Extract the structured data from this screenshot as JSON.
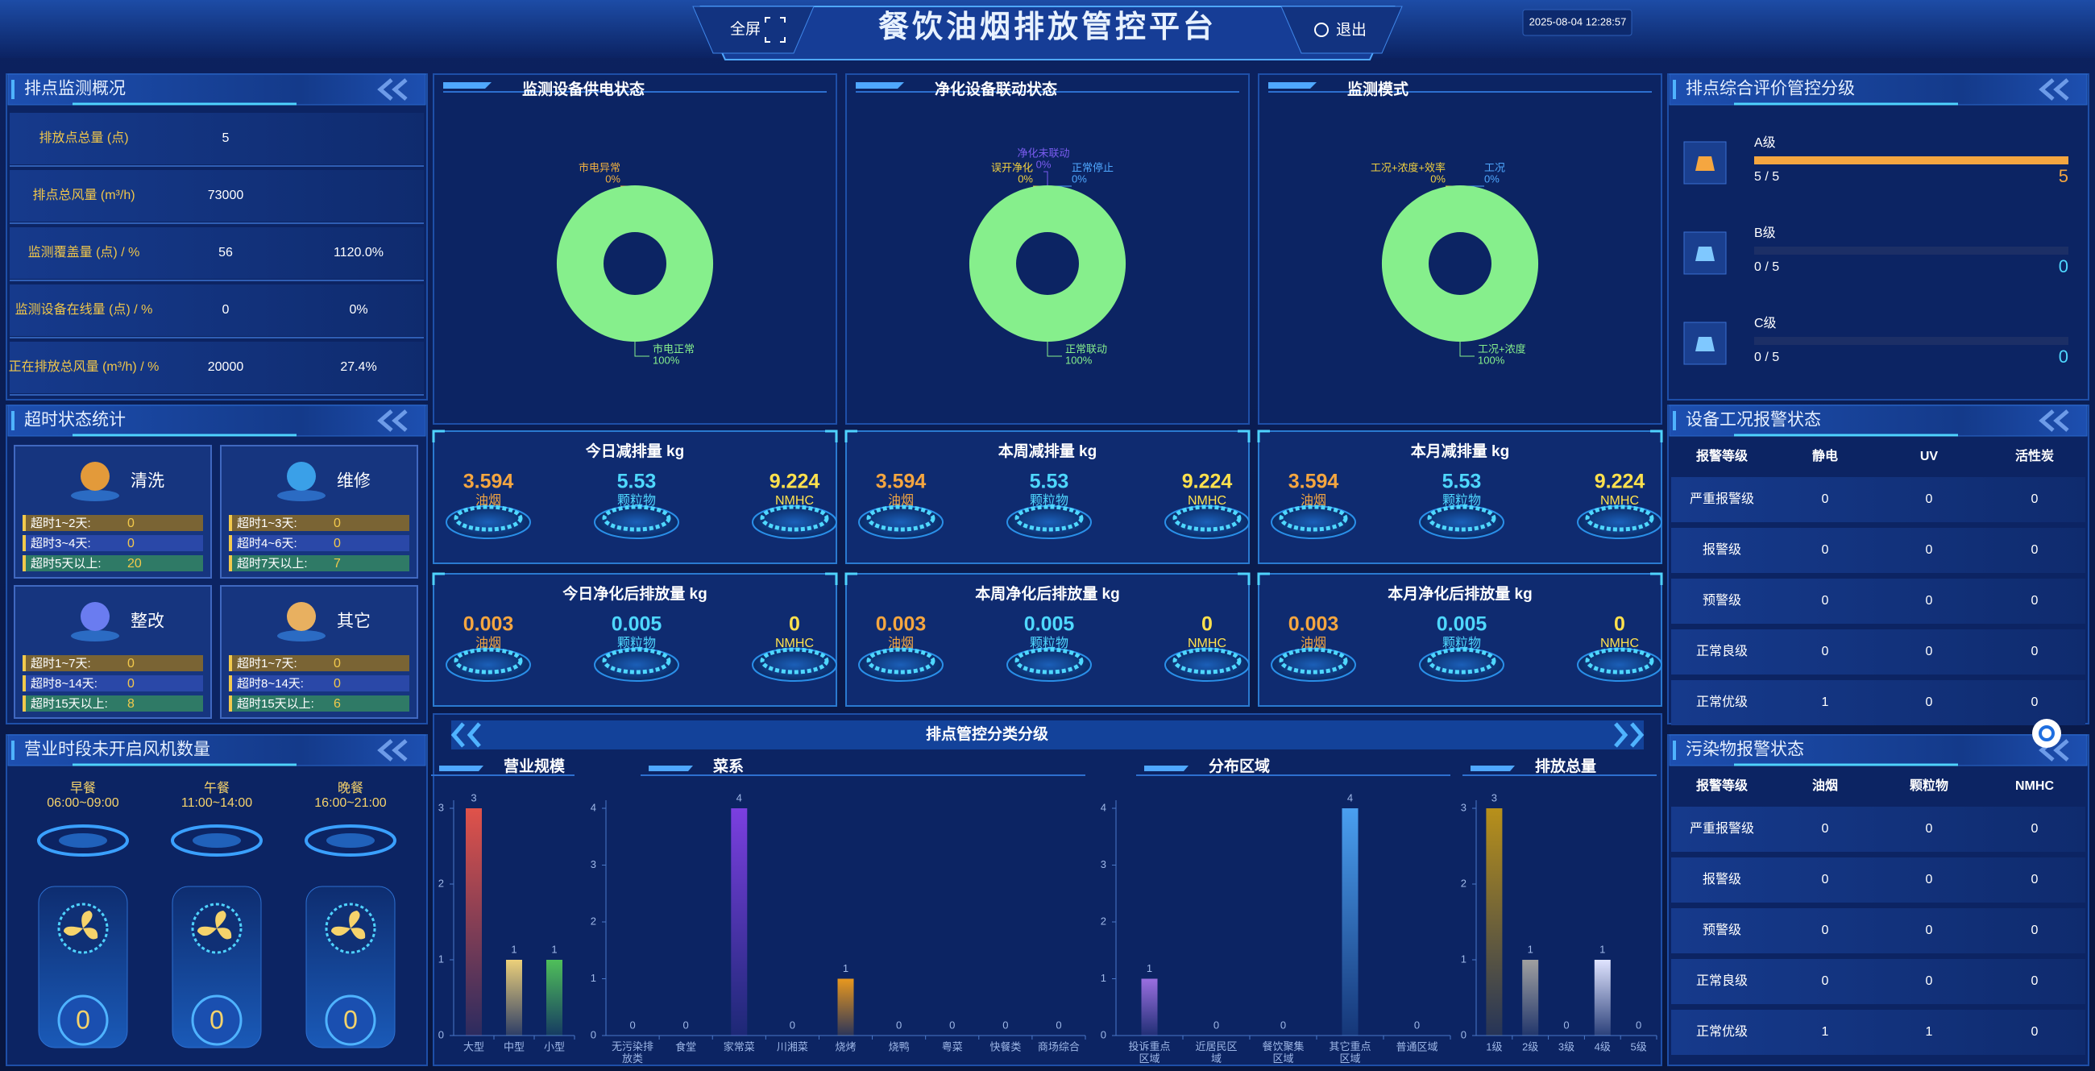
{
  "header": {
    "title": "餐饮油烟排放管控平台",
    "fullscreen": "全屏",
    "logout": "退出",
    "datetime": "2025-08-04 12:28:57"
  },
  "overview": {
    "title": "排点监测概况",
    "rows": [
      {
        "label": "排放点总量 (点)",
        "value": "5"
      },
      {
        "label": "排点总风量 (m³/h)",
        "value": "73000"
      },
      {
        "label": "监测覆盖量 (点) / %",
        "value": "56",
        "percent": "1120.0%"
      },
      {
        "label": "监测设备在线量 (点) / %",
        "value": "0",
        "percent": "0%"
      },
      {
        "label": "正在排放总风量 (m³/h) / %",
        "value": "20000",
        "percent": "27.4%"
      }
    ]
  },
  "overtime": {
    "title": "超时状态统计",
    "cards": [
      {
        "name": "清洗",
        "rows": [
          {
            "label": "超时1~2天:",
            "value": "0"
          },
          {
            "label": "超时3~4天:",
            "value": "0"
          },
          {
            "label": "超时5天以上:",
            "value": "20"
          }
        ]
      },
      {
        "name": "维修",
        "rows": [
          {
            "label": "超时1~3天:",
            "value": "0"
          },
          {
            "label": "超时4~6天:",
            "value": "0"
          },
          {
            "label": "超时7天以上:",
            "value": "7"
          }
        ]
      },
      {
        "name": "整改",
        "rows": [
          {
            "label": "超时1~7天:",
            "value": "0"
          },
          {
            "label": "超时8~14天:",
            "value": "0"
          },
          {
            "label": "超时15天以上:",
            "value": "8"
          }
        ]
      },
      {
        "name": "其它",
        "rows": [
          {
            "label": "超时1~7天:",
            "value": "0"
          },
          {
            "label": "超时8~14天:",
            "value": "0"
          },
          {
            "label": "超时15天以上:",
            "value": "6"
          }
        ]
      }
    ]
  },
  "fans": {
    "title": "营业时段未开启风机数量",
    "periods": [
      {
        "name": "早餐",
        "time": "06:00~09:00",
        "value": "0"
      },
      {
        "name": "午餐",
        "time": "11:00~14:00",
        "value": "0"
      },
      {
        "name": "晚餐",
        "time": "16:00~21:00",
        "value": "0"
      }
    ]
  },
  "emissions": [
    {
      "title": "今日减排量 kg",
      "items": [
        {
          "value": "3.594",
          "label": "油烟"
        },
        {
          "value": "5.53",
          "label": "颗粒物"
        },
        {
          "value": "9.224",
          "label": "NMHC"
        }
      ]
    },
    {
      "title": "本周减排量 kg",
      "items": [
        {
          "value": "3.594",
          "label": "油烟"
        },
        {
          "value": "5.53",
          "label": "颗粒物"
        },
        {
          "value": "9.224",
          "label": "NMHC"
        }
      ]
    },
    {
      "title": "本月减排量 kg",
      "items": [
        {
          "value": "3.594",
          "label": "油烟"
        },
        {
          "value": "5.53",
          "label": "颗粒物"
        },
        {
          "value": "9.224",
          "label": "NMHC"
        }
      ]
    },
    {
      "title": "今日净化后排放量 kg",
      "items": [
        {
          "value": "0.003",
          "label": "油烟"
        },
        {
          "value": "0.005",
          "label": "颗粒物"
        },
        {
          "value": "0",
          "label": "NMHC"
        }
      ]
    },
    {
      "title": "本周净化后排放量 kg",
      "items": [
        {
          "value": "0.003",
          "label": "油烟"
        },
        {
          "value": "0.005",
          "label": "颗粒物"
        },
        {
          "value": "0",
          "label": "NMHC"
        }
      ]
    },
    {
      "title": "本月净化后排放量 kg",
      "items": [
        {
          "value": "0.003",
          "label": "油烟"
        },
        {
          "value": "0.005",
          "label": "颗粒物"
        },
        {
          "value": "0",
          "label": "NMHC"
        }
      ]
    }
  ],
  "classification": {
    "title": "排点管控分类分级"
  },
  "chart_data": [
    {
      "type": "pie",
      "title": "监测设备供电状态",
      "categories": [
        "市电异常",
        "市电正常"
      ],
      "values": [
        0,
        100
      ],
      "value_labels": [
        "0%",
        "100%"
      ],
      "colors": [
        "#f0b040",
        "#86ef8c"
      ]
    },
    {
      "type": "pie",
      "title": "净化设备联动状态",
      "categories": [
        "误开净化",
        "正常停止",
        "净化未联动",
        "正常联动"
      ],
      "values": [
        0,
        0,
        0,
        100
      ],
      "value_labels": [
        "0%",
        "0%",
        "0%",
        "100%"
      ],
      "colors": [
        "#f0d040",
        "#4fa8ff",
        "#7a5cf0",
        "#86ef8c"
      ]
    },
    {
      "type": "pie",
      "title": "监测模式",
      "categories": [
        "工况+浓度+效率",
        "工况",
        "工况+浓度"
      ],
      "values": [
        0,
        0,
        100
      ],
      "value_labels": [
        "0%",
        "0%",
        "100%"
      ],
      "colors": [
        "#f0d040",
        "#4fa8ff",
        "#86ef8c"
      ]
    },
    {
      "type": "bar",
      "title": "营业规模",
      "categories": [
        "大型",
        "中型",
        "小型"
      ],
      "values": [
        3,
        1,
        1
      ],
      "colors": [
        "#e0524a",
        "#ecd07a",
        "#4fbf5a"
      ],
      "ylim": [
        0,
        3
      ],
      "yticks": [
        0,
        1,
        2,
        3
      ]
    },
    {
      "type": "bar",
      "title": "菜系",
      "categories": [
        "无污染排放类",
        "食堂",
        "家常菜",
        "川湘菜",
        "烧烤",
        "烧鸭",
        "粤菜",
        "快餐类",
        "商场综合"
      ],
      "values": [
        0,
        0,
        4,
        0,
        1,
        0,
        0,
        0,
        0
      ],
      "colors": [
        "#7b3fe0",
        "#7b3fe0",
        "#7b3fe0",
        "#7b3fe0",
        "#e8981e",
        "#e8981e",
        "#e8981e",
        "#e8981e",
        "#e8981e"
      ],
      "ylim": [
        0,
        4
      ],
      "yticks": [
        0,
        1,
        2,
        3,
        4
      ]
    },
    {
      "type": "bar",
      "title": "分布区域",
      "categories": [
        "投诉重点区域",
        "近居民区域",
        "餐饮聚集区域",
        "其它重点区域",
        "普通区域"
      ],
      "values": [
        1,
        0,
        0,
        4,
        0
      ],
      "colors": [
        "#9a6fe0",
        "#4a9ff0",
        "#4a9ff0",
        "#4a9ff0",
        "#4a9ff0"
      ],
      "ylim": [
        0,
        4
      ],
      "yticks": [
        0,
        1,
        2,
        3,
        4
      ]
    },
    {
      "type": "bar",
      "title": "排放总量",
      "categories": [
        "1级",
        "2级",
        "3级",
        "4级",
        "5级"
      ],
      "values": [
        3,
        1,
        0,
        1,
        0
      ],
      "colors": [
        "#b8901a",
        "#a0a0a0",
        "#a0a0a0",
        "#e0e4ff",
        "#a0a0a0"
      ],
      "ylim": [
        0,
        3
      ],
      "yticks": [
        0,
        1,
        2,
        3
      ]
    }
  ],
  "rating": {
    "title": "排点综合评价管控分级",
    "levels": [
      {
        "name": "A级",
        "ratio": "5 / 5",
        "value": "5"
      },
      {
        "name": "B级",
        "ratio": "0 / 5",
        "value": "0"
      },
      {
        "name": "C级",
        "ratio": "0 / 5",
        "value": "0"
      }
    ]
  },
  "equipment_alarm": {
    "title": "设备工况报警状态",
    "headers": [
      "报警等级",
      "静电",
      "UV",
      "活性炭"
    ],
    "rows": [
      [
        "严重报警级",
        "0",
        "0",
        "0"
      ],
      [
        "报警级",
        "0",
        "0",
        "0"
      ],
      [
        "预警级",
        "0",
        "0",
        "0"
      ],
      [
        "正常良级",
        "0",
        "0",
        "0"
      ],
      [
        "正常优级",
        "1",
        "0",
        "0"
      ]
    ]
  },
  "pollutant_alarm": {
    "title": "污染物报警状态",
    "headers": [
      "报警等级",
      "油烟",
      "颗粒物",
      "NMHC"
    ],
    "rows": [
      [
        "严重报警级",
        "0",
        "0",
        "0"
      ],
      [
        "报警级",
        "0",
        "0",
        "0"
      ],
      [
        "预警级",
        "0",
        "0",
        "0"
      ],
      [
        "正常良级",
        "0",
        "0",
        "0"
      ],
      [
        "正常优级",
        "1",
        "1",
        "0"
      ]
    ]
  }
}
